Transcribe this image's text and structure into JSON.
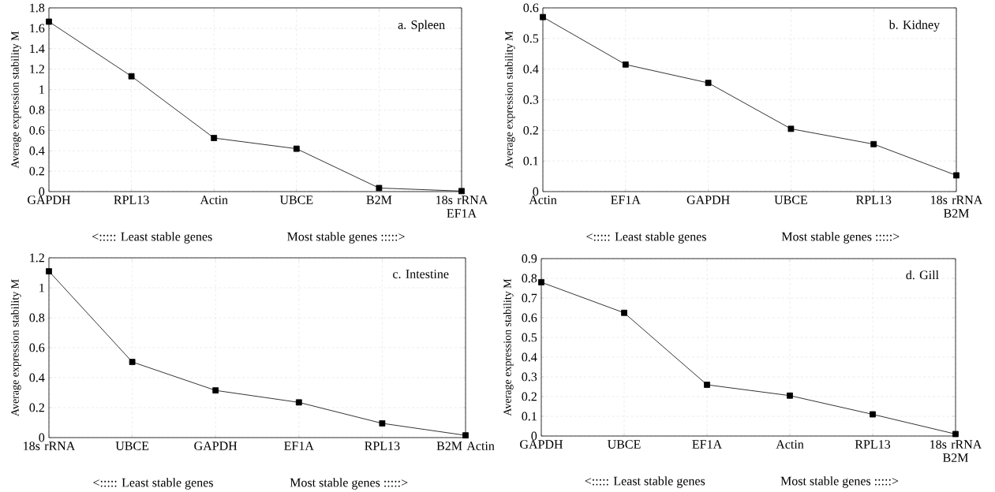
{
  "chart_data": [
    {
      "type": "line",
      "title": "a. Spleen",
      "ylabel": "Average expression stability M",
      "annotations": [
        "<::::: Least stable genes",
        "Most stable genes :::::>"
      ],
      "categories": [
        "GAPDH",
        "RPL13",
        "Actin",
        "UBCE",
        "B2M",
        "18s rRNA EF1A"
      ],
      "values": [
        1.665,
        1.13,
        0.525,
        0.42,
        0.035,
        0.005
      ],
      "color": "#000000",
      "ylim": [
        0,
        1.8
      ],
      "yticks": [
        0,
        0.2,
        0.4,
        0.6,
        0.8,
        1,
        1.2,
        1.4,
        1.6,
        1.8
      ],
      "grid": true,
      "marker": "square",
      "line_style": "solid"
    },
    {
      "type": "line",
      "title": "b. Kidney",
      "ylabel": "Average expression stability M",
      "annotations": [
        "<::::: Least stable genes",
        "Most stable genes :::::>"
      ],
      "categories": [
        "Actin",
        "EF1A",
        "GAPDH",
        "UBCE",
        "RPL13",
        "18s rRNA B2M"
      ],
      "values": [
        0.57,
        0.415,
        0.355,
        0.205,
        0.155,
        0.053
      ],
      "color": "#000000",
      "ylim": [
        0,
        0.6
      ],
      "yticks": [
        0,
        0.1,
        0.2,
        0.3,
        0.4,
        0.5,
        0.6
      ],
      "grid": true,
      "marker": "square",
      "line_style": "solid"
    },
    {
      "type": "line",
      "title": "c. Intestine",
      "ylabel": "Average expression stability M",
      "annotations": [
        "<::::: Least stable genes",
        "Most stable genes :::::>"
      ],
      "categories": [
        "18s rRNA",
        "UBCE",
        "GAPDH",
        "EF1A",
        "RPL13",
        "B2M Actin"
      ],
      "values": [
        1.11,
        0.505,
        0.315,
        0.235,
        0.095,
        0.015
      ],
      "color": "#000000",
      "ylim": [
        0,
        1.2
      ],
      "yticks": [
        0,
        0.2,
        0.4,
        0.6,
        0.8,
        1,
        1.2
      ],
      "grid": true,
      "marker": "square",
      "line_style": "solid"
    },
    {
      "type": "line",
      "title": "d. Gill",
      "ylabel": "Average expression stability M",
      "annotations": [
        "<::::: Least stable genes",
        "Most stable genes :::::>"
      ],
      "categories": [
        "GAPDH",
        "UBCE",
        "EF1A",
        "Actin",
        "RPL13",
        "18s rRNA B2M"
      ],
      "values": [
        0.78,
        0.625,
        0.26,
        0.205,
        0.11,
        0.01
      ],
      "color": "#000000",
      "ylim": [
        0,
        0.9
      ],
      "yticks": [
        0,
        0.1,
        0.2,
        0.3,
        0.4,
        0.5,
        0.6,
        0.7,
        0.8,
        0.9
      ],
      "grid": true,
      "marker": "square",
      "line_style": "solid"
    }
  ]
}
